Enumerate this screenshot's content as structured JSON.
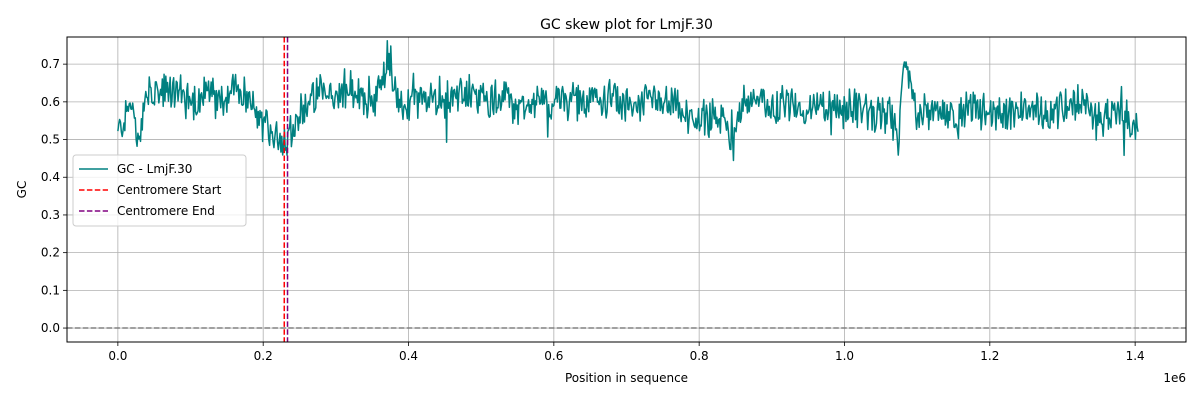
{
  "chart_data": {
    "type": "line",
    "title": "GC skew plot for LmjF.30",
    "xlabel": "Position in sequence",
    "ylabel": "GC",
    "x_offset_label": "1e6",
    "xlim": [
      -70000,
      1470000
    ],
    "ylim": [
      -0.037,
      0.772
    ],
    "x_ticks": [
      0,
      200000,
      400000,
      600000,
      800000,
      1000000,
      1200000,
      1400000
    ],
    "x_tick_labels": [
      "0.0",
      "0.2",
      "0.4",
      "0.6",
      "0.8",
      "1.0",
      "1.2",
      "1.4"
    ],
    "y_ticks": [
      0.0,
      0.1,
      0.2,
      0.3,
      0.4,
      0.5,
      0.6,
      0.7
    ],
    "y_tick_labels": [
      "0.0",
      "0.1",
      "0.2",
      "0.3",
      "0.4",
      "0.5",
      "0.6",
      "0.7"
    ],
    "grid": true,
    "legend_position": "center-left",
    "series": [
      {
        "name": "GC - LmjF.30",
        "color": "#008080",
        "points": [
          [
            0,
            0.515
          ],
          [
            20000,
            0.605
          ],
          [
            27000,
            0.47
          ],
          [
            40000,
            0.62
          ],
          [
            60000,
            0.62
          ],
          [
            80000,
            0.63
          ],
          [
            100000,
            0.6
          ],
          [
            120000,
            0.62
          ],
          [
            140000,
            0.6
          ],
          [
            160000,
            0.64
          ],
          [
            180000,
            0.6
          ],
          [
            195000,
            0.55
          ],
          [
            210000,
            0.52
          ],
          [
            225000,
            0.5
          ],
          [
            240000,
            0.53
          ],
          [
            260000,
            0.6
          ],
          [
            280000,
            0.62
          ],
          [
            300000,
            0.61
          ],
          [
            320000,
            0.63
          ],
          [
            340000,
            0.6
          ],
          [
            360000,
            0.63
          ],
          [
            372000,
            0.73
          ],
          [
            390000,
            0.58
          ],
          [
            410000,
            0.61
          ],
          [
            430000,
            0.6
          ],
          [
            450000,
            0.6
          ],
          [
            470000,
            0.62
          ],
          [
            490000,
            0.62
          ],
          [
            510000,
            0.6
          ],
          [
            530000,
            0.62
          ],
          [
            550000,
            0.58
          ],
          [
            570000,
            0.6
          ],
          [
            590000,
            0.59
          ],
          [
            610000,
            0.61
          ],
          [
            630000,
            0.6
          ],
          [
            650000,
            0.6
          ],
          [
            670000,
            0.61
          ],
          [
            690000,
            0.6
          ],
          [
            710000,
            0.58
          ],
          [
            730000,
            0.6
          ],
          [
            750000,
            0.6
          ],
          [
            770000,
            0.58
          ],
          [
            790000,
            0.55
          ],
          [
            810000,
            0.56
          ],
          [
            830000,
            0.55
          ],
          [
            845000,
            0.52
          ],
          [
            860000,
            0.6
          ],
          [
            880000,
            0.6
          ],
          [
            900000,
            0.59
          ],
          [
            920000,
            0.6
          ],
          [
            940000,
            0.58
          ],
          [
            960000,
            0.59
          ],
          [
            980000,
            0.58
          ],
          [
            1000000,
            0.58
          ],
          [
            1020000,
            0.58
          ],
          [
            1040000,
            0.56
          ],
          [
            1060000,
            0.57
          ],
          [
            1075000,
            0.5
          ],
          [
            1082000,
            0.71
          ],
          [
            1100000,
            0.56
          ],
          [
            1120000,
            0.58
          ],
          [
            1140000,
            0.57
          ],
          [
            1160000,
            0.57
          ],
          [
            1180000,
            0.59
          ],
          [
            1200000,
            0.56
          ],
          [
            1220000,
            0.57
          ],
          [
            1240000,
            0.58
          ],
          [
            1260000,
            0.57
          ],
          [
            1280000,
            0.57
          ],
          [
            1300000,
            0.59
          ],
          [
            1320000,
            0.6
          ],
          [
            1340000,
            0.57
          ],
          [
            1360000,
            0.56
          ],
          [
            1380000,
            0.57
          ],
          [
            1405000,
            0.52
          ]
        ]
      }
    ],
    "reference_lines": [
      {
        "name": "Centromere Start",
        "orientation": "vertical",
        "value": 229000,
        "color": "#ff0000",
        "style": "dashed"
      },
      {
        "name": "Centromere End",
        "orientation": "vertical",
        "value": 233500,
        "color": "#800080",
        "style": "dashed"
      },
      {
        "name": "",
        "orientation": "horizontal",
        "value": 0.0,
        "color": "#808080",
        "style": "dashed"
      }
    ]
  }
}
